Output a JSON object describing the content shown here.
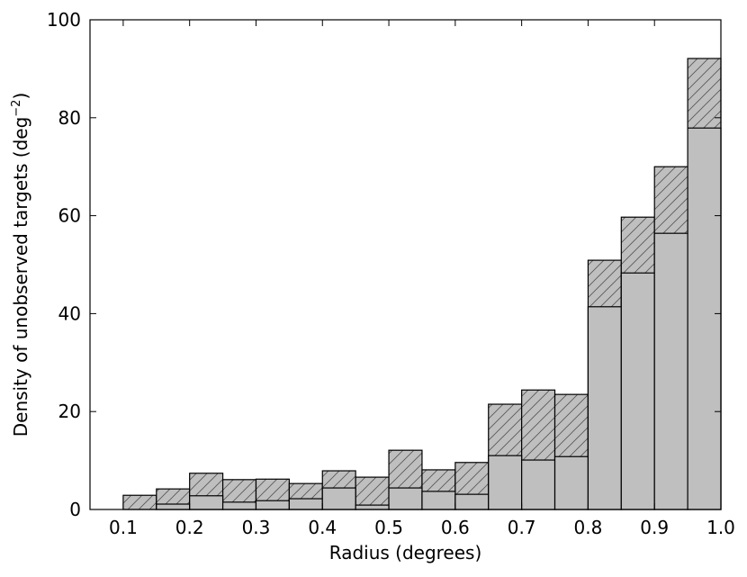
{
  "chart_data": {
    "type": "histogram",
    "xlabel": "Radius (degrees)",
    "ylabel": [
      "Density of unobserved targets (deg",
      "−2",
      ")"
    ],
    "bins": [
      0.1,
      0.15,
      0.2,
      0.25,
      0.3,
      0.35,
      0.4,
      0.45,
      0.5,
      0.55,
      0.6,
      0.65,
      0.7,
      0.75,
      0.8,
      0.85,
      0.9,
      0.95,
      1.0
    ],
    "series": [
      {
        "color": "#bfbfbf",
        "hatch": "/",
        "values": [
          2.9,
          4.2,
          7.4,
          6.1,
          6.2,
          5.3,
          7.9,
          6.6,
          12.1,
          8.1,
          9.6,
          21.5,
          24.4,
          23.5,
          50.9,
          59.7,
          70.0,
          92.1
        ]
      },
      {
        "color": "#bfbfbf",
        "values": [
          0,
          1.1,
          2.8,
          1.5,
          1.8,
          2.2,
          4.4,
          0.9,
          4.4,
          3.7,
          3.1,
          11.0,
          10.1,
          10.8,
          41.4,
          48.3,
          56.4,
          77.9
        ]
      }
    ],
    "xlim": [
      0.05,
      1.0
    ],
    "ylim": [
      0,
      100
    ],
    "xticks": [
      0.1,
      0.2,
      0.3,
      0.4,
      0.5,
      0.6,
      0.7,
      0.8,
      0.9,
      {
        "value": 1.0,
        "label": "1.0"
      }
    ],
    "yticks": [
      0,
      20,
      40,
      60,
      80,
      100
    ]
  }
}
